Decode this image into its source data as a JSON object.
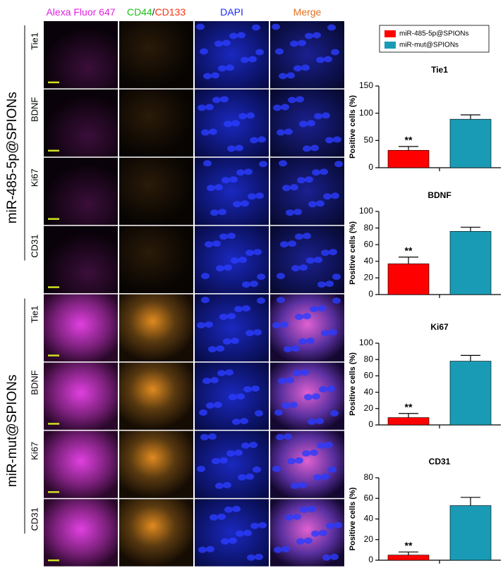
{
  "figure": {
    "column_headers": [
      [
        "Alexa Fluor 647"
      ],
      [
        "CD44",
        "/",
        "CD133"
      ],
      [
        "DAPI"
      ],
      [
        "Merge"
      ]
    ],
    "groups": [
      {
        "label": "miR-485-5p@SPIONs",
        "rows": [
          "Tie1",
          "BDNF",
          "Ki67",
          "CD31"
        ]
      },
      {
        "label": "miR-mut@SPIONs",
        "rows": [
          "Tie1",
          "BDNF",
          "Ki67",
          "CD31"
        ]
      }
    ]
  },
  "legend": [
    {
      "name": "miR-485-5p@SPIONs",
      "color": "#ff0000"
    },
    {
      "name": "miR-mut@SPIONs",
      "color": "#1a9bb5"
    }
  ],
  "chart_data": [
    {
      "type": "bar",
      "title": "Tie1",
      "ylabel": "Positive cells (%)",
      "values": [
        32,
        89
      ],
      "errors": [
        7,
        8
      ],
      "annotation": "**",
      "ylim": [
        0,
        150
      ],
      "yticks": [
        0,
        50,
        100,
        150
      ]
    },
    {
      "type": "bar",
      "title": "BDNF",
      "ylabel": "Positive cells (%)",
      "values": [
        37,
        76
      ],
      "errors": [
        8,
        5
      ],
      "annotation": "**",
      "ylim": [
        0,
        100
      ],
      "yticks": [
        0,
        20,
        40,
        60,
        80,
        100
      ]
    },
    {
      "type": "bar",
      "title": "Ki67",
      "ylabel": "Positive cells (%)",
      "values": [
        9,
        78
      ],
      "errors": [
        5,
        7
      ],
      "annotation": "**",
      "ylim": [
        0,
        100
      ],
      "yticks": [
        0,
        20,
        40,
        60,
        80,
        100
      ]
    },
    {
      "type": "bar",
      "title": "CD31",
      "ylabel": "Positive cells (%)",
      "values": [
        5,
        53
      ],
      "errors": [
        3,
        8
      ],
      "annotation": "**",
      "ylim": [
        0,
        80
      ],
      "yticks": [
        0,
        20,
        40,
        60,
        80
      ]
    }
  ]
}
